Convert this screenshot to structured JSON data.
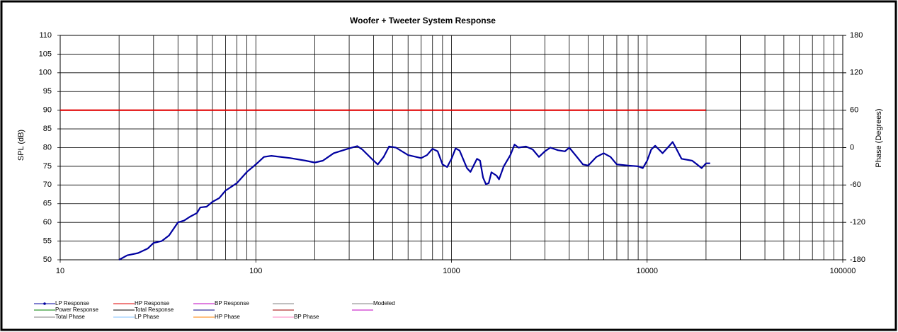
{
  "chart_data": {
    "type": "line",
    "title": "Woofer + Tweeter     System Response",
    "y_label": "SPL (dB)",
    "y2_label": "Phase (Degrees)",
    "x_log": true,
    "grid": true,
    "xlim": [
      10,
      100000
    ],
    "xticks": [
      10,
      100,
      1000,
      10000,
      100000
    ],
    "ylim": [
      50,
      110
    ],
    "yticks": [
      50,
      55,
      60,
      65,
      70,
      75,
      80,
      85,
      90,
      95,
      100,
      105,
      110
    ],
    "y2lim": [
      -180,
      180
    ],
    "y2ticks": [
      -180,
      -120,
      -60,
      0,
      60,
      120,
      180
    ],
    "series": [
      {
        "name": "LP Response",
        "color": "#0000a0",
        "x": [
          20,
          22,
          25,
          28,
          30,
          33,
          36,
          40,
          43,
          46,
          50,
          52,
          56,
          60,
          65,
          70,
          80,
          90,
          100,
          110,
          120,
          150,
          180,
          200,
          220,
          250,
          300,
          330,
          350,
          400,
          420,
          450,
          480,
          520,
          600,
          700,
          750,
          800,
          850,
          900,
          950,
          1000,
          1050,
          1100,
          1200,
          1250,
          1350,
          1400,
          1450,
          1500,
          1550,
          1600,
          1700,
          1750,
          1850,
          2000,
          2100,
          2200,
          2400,
          2600,
          2800,
          3000,
          3200,
          3500,
          3800,
          4000,
          4300,
          4700,
          5000,
          5500,
          6000,
          6500,
          7000,
          8000,
          9000,
          9500,
          10000,
          10500,
          11000,
          12000,
          13000,
          13500,
          14000,
          15000,
          17000,
          18000,
          19000,
          20000,
          21000
        ],
        "values": [
          50,
          51.2,
          51.8,
          53,
          54.5,
          55,
          56.5,
          60,
          60.5,
          61.5,
          62.5,
          64,
          64.2,
          65.5,
          66.5,
          68.5,
          70.5,
          73.5,
          75.5,
          77.5,
          77.8,
          77.2,
          76.5,
          76,
          76.5,
          78.5,
          79.8,
          80.4,
          79.5,
          76.5,
          75.5,
          77.5,
          80.3,
          80,
          78,
          77.2,
          78,
          79.7,
          79,
          75.5,
          74.8,
          77,
          79.8,
          79.2,
          74.5,
          73.5,
          77,
          76.5,
          72,
          70.2,
          70.5,
          73.4,
          72.5,
          71.5,
          75,
          78,
          80.8,
          80,
          80.3,
          79.5,
          77.5,
          79,
          80,
          79.3,
          79,
          80,
          78,
          75.5,
          75.2,
          77.5,
          78.5,
          77.5,
          75.5,
          75.2,
          75,
          74.5,
          76.5,
          79.5,
          80.5,
          78.5,
          80.5,
          81.5,
          80,
          77,
          76.5,
          75.5,
          74.5,
          75.8,
          75.8
        ]
      },
      {
        "name": "HP Response",
        "color": "#e00000",
        "x": [
          10,
          20000
        ],
        "values": [
          90,
          90
        ]
      }
    ],
    "other_legend_entries": [
      {
        "name": "BP Response",
        "color": "#c000c0"
      },
      {
        "name": "Modeled",
        "color": "#808080"
      },
      {
        "name": "Power Response",
        "color": "#008000"
      },
      {
        "name": "Total Response",
        "color": "#000000"
      },
      {
        "name": "Total Phase",
        "color": "#808080"
      },
      {
        "name": "LP Phase",
        "color": "#80c0ff"
      },
      {
        "name": "HP Phase",
        "color": "#ff8000"
      },
      {
        "name": "BP Phase",
        "color": "#ff80c0"
      }
    ]
  }
}
